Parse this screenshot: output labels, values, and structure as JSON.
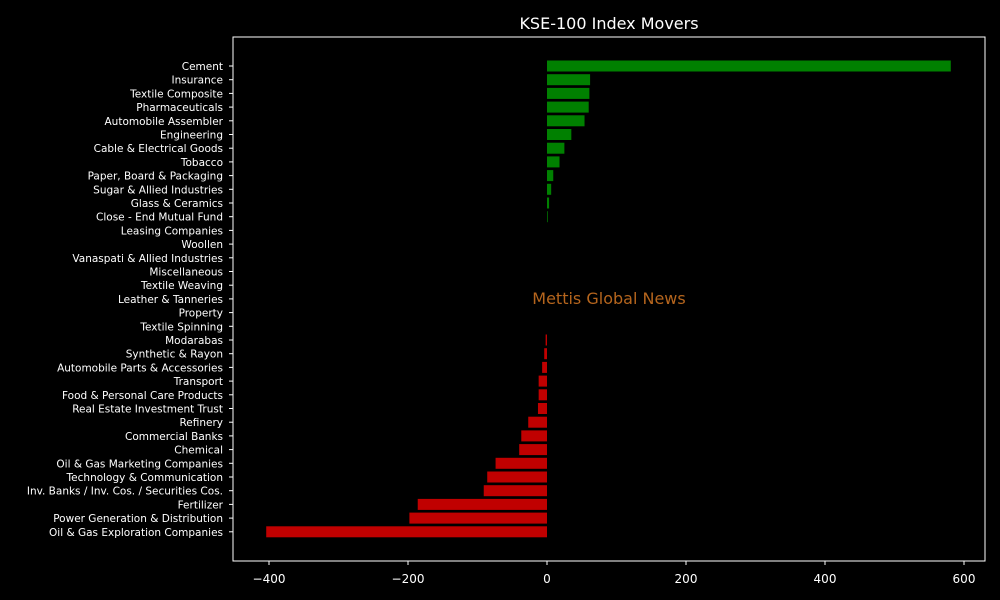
{
  "chart_data": {
    "type": "bar",
    "orientation": "horizontal",
    "title": "KSE-100 Index Movers",
    "watermark": "Mettis Global News",
    "xlabel": "",
    "ylabel": "",
    "xlim": [
      -450,
      630
    ],
    "xticks": [
      -400,
      -200,
      0,
      200,
      400,
      600
    ],
    "grid": false,
    "colors": {
      "positive": "#008000",
      "negative": "#c00000",
      "background": "#000000",
      "text": "#ffffff",
      "watermark": "#b5651d"
    },
    "categories": [
      "Cement",
      "Insurance",
      "Textile Composite",
      "Pharmaceuticals",
      "Automobile Assembler",
      "Engineering",
      "Cable & Electrical Goods",
      "Tobacco",
      "Paper, Board & Packaging",
      "Sugar & Allied Industries",
      "Glass & Ceramics",
      "Close - End Mutual Fund",
      "Leasing Companies",
      "Woollen",
      "Vanaspati & Allied Industries",
      "Miscellaneous",
      "Textile Weaving",
      "Leather & Tanneries",
      "Property",
      "Textile Spinning",
      "Modarabas",
      "Synthetic & Rayon",
      "Automobile Parts & Accessories",
      "Transport",
      "Food & Personal Care Products",
      "Real Estate Investment Trust",
      "Refinery",
      "Commercial Banks",
      "Chemical",
      "Oil & Gas Marketing Companies",
      "Technology & Communication",
      "Inv. Banks / Inv. Cos. / Securities Cos.",
      "Fertilizer",
      "Power Generation & Distribution",
      "Oil & Gas Exploration Companies"
    ],
    "values": [
      581,
      62,
      61,
      60,
      54,
      35,
      25,
      18,
      9,
      6,
      3,
      1,
      0,
      0,
      0,
      0,
      0,
      0,
      0,
      0,
      -2,
      -4,
      -7,
      -12,
      -12,
      -13,
      -27,
      -37,
      -40,
      -74,
      -86,
      -91,
      -186,
      -198,
      -404
    ]
  }
}
